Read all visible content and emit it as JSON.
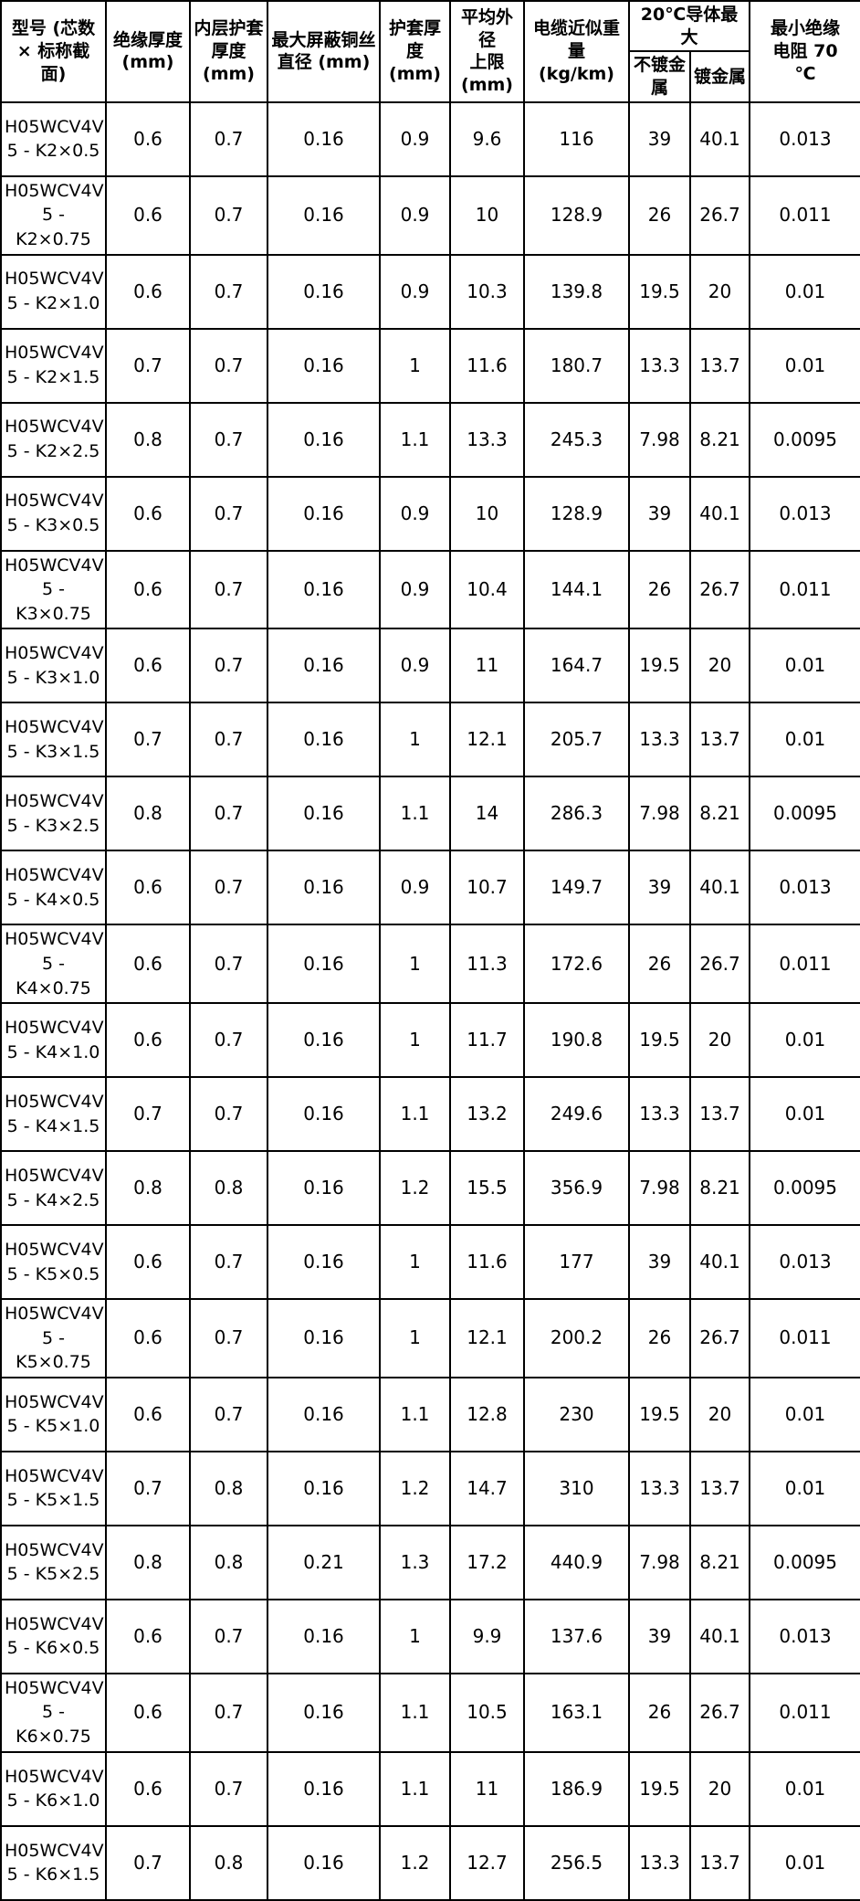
{
  "colors": {
    "background": "#ffffff",
    "border": "#000000",
    "text": "#000000"
  },
  "table": {
    "headers": {
      "model": "型号 (芯数\n× 标称截\n面)",
      "insulation_thickness": "绝缘厚度\n(mm)",
      "inner_sheath_thickness": "内层护套\n厚度\n(mm)",
      "max_shield_wire_diameter": "最大屏蔽铜丝\n直径 (mm)",
      "sheath_thickness": "护套厚度\n(mm)",
      "avg_outer_diameter_max": "平均外径\n上限\n(mm)",
      "approx_weight": "电缆近似重量\n(kg/km)",
      "conductor_group": "20℃导体最大",
      "unplated_metal": "不镀金\n属",
      "plated_metal": "镀金属",
      "min_insulation_resistance": "最小绝缘\n电阻 70\n℃"
    },
    "rows": [
      [
        "H05WCV4V\n5 - K2×0.5",
        "0.6",
        "0.7",
        "0.16",
        "0.9",
        "9.6",
        "116",
        "39",
        "40.1",
        "0.013"
      ],
      [
        "H05WCV4V\n5 - K2×0.75",
        "0.6",
        "0.7",
        "0.16",
        "0.9",
        "10",
        "128.9",
        "26",
        "26.7",
        "0.011"
      ],
      [
        "H05WCV4V\n5 - K2×1.0",
        "0.6",
        "0.7",
        "0.16",
        "0.9",
        "10.3",
        "139.8",
        "19.5",
        "20",
        "0.01"
      ],
      [
        "H05WCV4V\n5 - K2×1.5",
        "0.7",
        "0.7",
        "0.16",
        "1",
        "11.6",
        "180.7",
        "13.3",
        "13.7",
        "0.01"
      ],
      [
        "H05WCV4V\n5 - K2×2.5",
        "0.8",
        "0.7",
        "0.16",
        "1.1",
        "13.3",
        "245.3",
        "7.98",
        "8.21",
        "0.0095"
      ],
      [
        "H05WCV4V\n5 - K3×0.5",
        "0.6",
        "0.7",
        "0.16",
        "0.9",
        "10",
        "128.9",
        "39",
        "40.1",
        "0.013"
      ],
      [
        "H05WCV4V\n5 - K3×0.75",
        "0.6",
        "0.7",
        "0.16",
        "0.9",
        "10.4",
        "144.1",
        "26",
        "26.7",
        "0.011"
      ],
      [
        "H05WCV4V\n5 - K3×1.0",
        "0.6",
        "0.7",
        "0.16",
        "0.9",
        "11",
        "164.7",
        "19.5",
        "20",
        "0.01"
      ],
      [
        "H05WCV4V\n5 - K3×1.5",
        "0.7",
        "0.7",
        "0.16",
        "1",
        "12.1",
        "205.7",
        "13.3",
        "13.7",
        "0.01"
      ],
      [
        "H05WCV4V\n5 - K3×2.5",
        "0.8",
        "0.7",
        "0.16",
        "1.1",
        "14",
        "286.3",
        "7.98",
        "8.21",
        "0.0095"
      ],
      [
        "H05WCV4V\n5 - K4×0.5",
        "0.6",
        "0.7",
        "0.16",
        "0.9",
        "10.7",
        "149.7",
        "39",
        "40.1",
        "0.013"
      ],
      [
        "H05WCV4V\n5 - K4×0.75",
        "0.6",
        "0.7",
        "0.16",
        "1",
        "11.3",
        "172.6",
        "26",
        "26.7",
        "0.011"
      ],
      [
        "H05WCV4V\n5 - K4×1.0",
        "0.6",
        "0.7",
        "0.16",
        "1",
        "11.7",
        "190.8",
        "19.5",
        "20",
        "0.01"
      ],
      [
        "H05WCV4V\n5 - K4×1.5",
        "0.7",
        "0.7",
        "0.16",
        "1.1",
        "13.2",
        "249.6",
        "13.3",
        "13.7",
        "0.01"
      ],
      [
        "H05WCV4V\n5 - K4×2.5",
        "0.8",
        "0.8",
        "0.16",
        "1.2",
        "15.5",
        "356.9",
        "7.98",
        "8.21",
        "0.0095"
      ],
      [
        "H05WCV4V\n5 - K5×0.5",
        "0.6",
        "0.7",
        "0.16",
        "1",
        "11.6",
        "177",
        "39",
        "40.1",
        "0.013"
      ],
      [
        "H05WCV4V\n5 - K5×0.75",
        "0.6",
        "0.7",
        "0.16",
        "1",
        "12.1",
        "200.2",
        "26",
        "26.7",
        "0.011"
      ],
      [
        "H05WCV4V\n5 - K5×1.0",
        "0.6",
        "0.7",
        "0.16",
        "1.1",
        "12.8",
        "230",
        "19.5",
        "20",
        "0.01"
      ],
      [
        "H05WCV4V\n5 - K5×1.5",
        "0.7",
        "0.8",
        "0.16",
        "1.2",
        "14.7",
        "310",
        "13.3",
        "13.7",
        "0.01"
      ],
      [
        "H05WCV4V\n5 - K5×2.5",
        "0.8",
        "0.8",
        "0.21",
        "1.3",
        "17.2",
        "440.9",
        "7.98",
        "8.21",
        "0.0095"
      ],
      [
        "H05WCV4V\n5 - K6×0.5",
        "0.6",
        "0.7",
        "0.16",
        "1",
        "9.9",
        "137.6",
        "39",
        "40.1",
        "0.013"
      ],
      [
        "H05WCV4V\n5 - K6×0.75",
        "0.6",
        "0.7",
        "0.16",
        "1.1",
        "10.5",
        "163.1",
        "26",
        "26.7",
        "0.011"
      ],
      [
        "H05WCV4V\n5 - K6×1.0",
        "0.6",
        "0.7",
        "0.16",
        "1.1",
        "11",
        "186.9",
        "19.5",
        "20",
        "0.01"
      ],
      [
        "H05WCV4V\n5 - K6×1.5",
        "0.7",
        "0.8",
        "0.16",
        "1.2",
        "12.7",
        "256.5",
        "13.3",
        "13.7",
        "0.01"
      ]
    ],
    "column_names": [
      "model",
      "insulation_thickness",
      "inner_sheath_thickness",
      "max_shield_wire_diameter",
      "sheath_thickness",
      "avg_outer_diameter_max",
      "approx_weight",
      "unplated_metal",
      "plated_metal",
      "min_insulation_resistance"
    ]
  }
}
